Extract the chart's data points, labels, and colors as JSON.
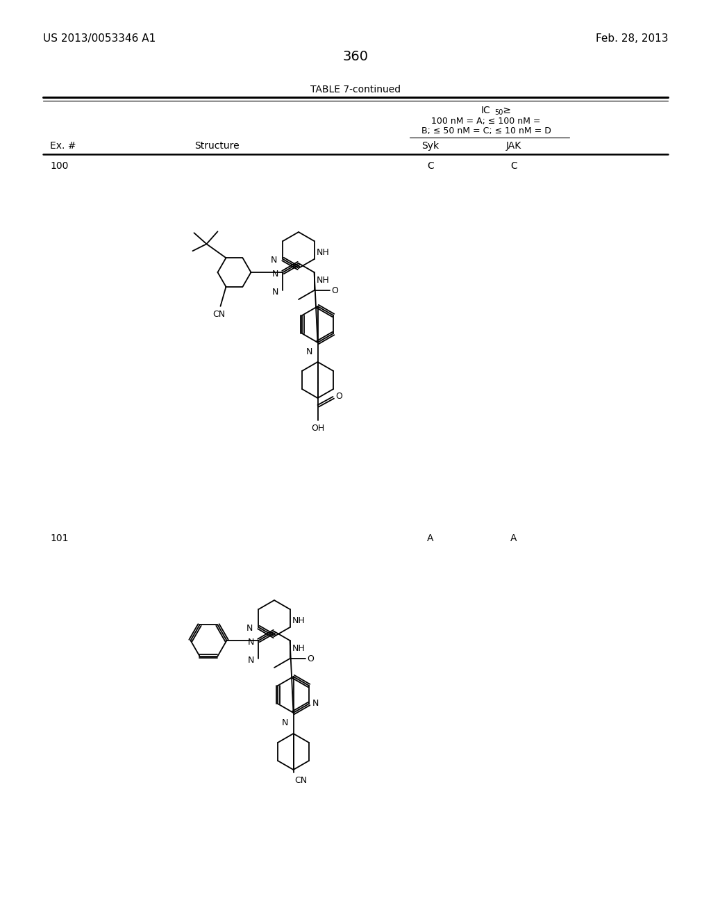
{
  "page_header_left": "US 2013/0053346 A1",
  "page_header_right": "Feb. 28, 2013",
  "page_number": "360",
  "table_title": "TABLE 7-continued",
  "ic50_line1": "IC",
  "ic50_sub": "50",
  "ic50_gte": "≥",
  "ic50_line2": "100 nM = A; ≤ 100 nM =",
  "ic50_line3": "B; ≤ 50 nM = C; ≤ 10 nM = D",
  "col1_header": "Ex. #",
  "col2_header": "Structure",
  "col3_header": "Syk",
  "col4_header": "JAK",
  "row1_ex": "100",
  "row1_syk": "C",
  "row1_jak": "C",
  "row2_ex": "101",
  "row2_syk": "A",
  "row2_jak": "A",
  "bg_color": "#ffffff",
  "text_color": "#000000"
}
